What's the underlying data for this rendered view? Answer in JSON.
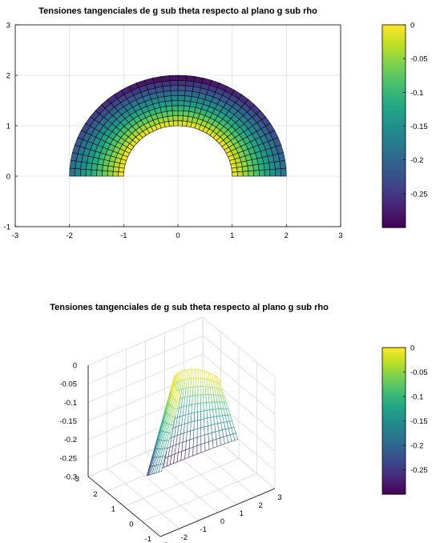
{
  "chart_data": [
    {
      "type": "heatmap",
      "plot": "pcolor",
      "title": "Tensiones tangenciales de g sub theta respecto al plano g sub rho",
      "xlim": [
        -3,
        3
      ],
      "ylim": [
        -1,
        3
      ],
      "x_ticks": [
        "-3",
        "-2",
        "-1",
        "0",
        "1",
        "2",
        "3"
      ],
      "y_ticks": [
        "-1",
        "0",
        "1",
        "2",
        "3"
      ],
      "grid": true,
      "domain": {
        "r_inner": 1,
        "r_outer": 2,
        "theta_range_deg": [
          0,
          180
        ],
        "radial_cells": 10,
        "angular_cells": 40
      },
      "value_range": [
        -0.3,
        0
      ],
      "values_note": "0 at r=1, about -0.3 at r=2, about -0.19 at r=2 near theta=0/180",
      "colormap": "viridis",
      "colorbar": {
        "ticks": [
          "0",
          "-0.05",
          "-0.1",
          "-0.15",
          "-0.2",
          "-0.25"
        ],
        "values": [
          0,
          -0.05,
          -0.1,
          -0.15,
          -0.2,
          -0.25
        ],
        "range": [
          -0.3,
          0
        ]
      }
    },
    {
      "type": "surface",
      "plot": "mesh",
      "title": "Tensiones tangenciales de g sub theta respecto al plano g sub rho",
      "xlim": [
        -3,
        3
      ],
      "ylim": [
        -1,
        3
      ],
      "zlim": [
        -0.3,
        0
      ],
      "x_ticks": [
        "-3",
        "-2",
        "-1",
        "0",
        "1",
        "2",
        "3"
      ],
      "y_ticks": [
        "-1",
        "0",
        "1",
        "2",
        "3"
      ],
      "z_ticks": [
        "0",
        "-0.05",
        "-0.1",
        "-0.15",
        "-0.2",
        "-0.25",
        "-0.3"
      ],
      "grid": true,
      "colormap": "viridis",
      "colorbar": {
        "ticks": [
          "0",
          "-0.05",
          "-0.1",
          "-0.15",
          "-0.2",
          "-0.25"
        ],
        "values": [
          0,
          -0.05,
          -0.1,
          -0.15,
          -0.2,
          -0.25
        ],
        "range": [
          -0.3,
          0
        ]
      }
    }
  ]
}
